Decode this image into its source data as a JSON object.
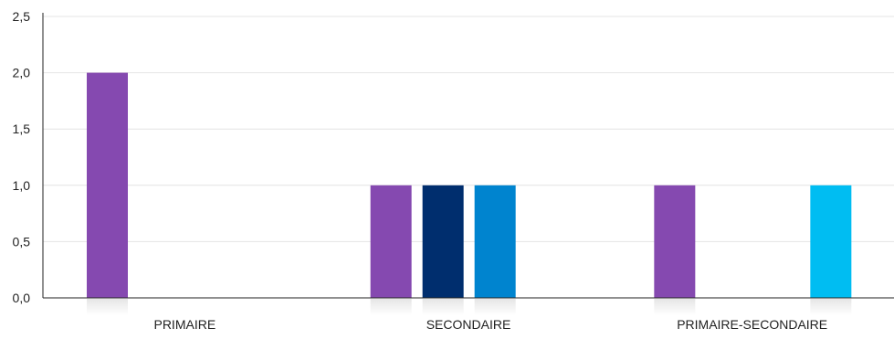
{
  "chart_data": {
    "type": "bar",
    "title": "",
    "xlabel": "",
    "ylabel": "",
    "categories": [
      "PRIMAIRE",
      "SECONDAIRE",
      "PRIMAIRE-SECONDAIRE"
    ],
    "ylim": [
      0,
      2.5
    ],
    "yticks": [
      "0,0",
      "0,5",
      "1,0",
      "1,5",
      "2,0",
      "2,5"
    ],
    "grid": true,
    "legend": "none",
    "series": [
      {
        "color": "#8549b0",
        "values": [
          2,
          1,
          1
        ]
      },
      {
        "color": "#002e6e",
        "values": [
          0,
          1,
          0
        ]
      },
      {
        "color": "#0084cf",
        "values": [
          0,
          1,
          0
        ]
      },
      {
        "color": "#00bdf2",
        "values": [
          0,
          0,
          1
        ]
      }
    ]
  }
}
